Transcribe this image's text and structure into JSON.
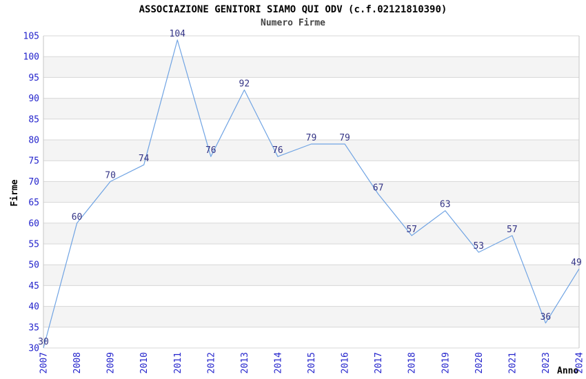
{
  "title": "ASSOCIAZIONE GENITORI SIAMO QUI ODV (c.f.02121810390)",
  "subtitle": "Numero Firme",
  "colors": {
    "tick_label": "#2323cc",
    "data_label": "#333385",
    "line": "#6fa3e3",
    "band_gray": "#f4f4f4",
    "gridline": "#d7d7d7",
    "plot_border": "#c6c6c6",
    "title": "#000000",
    "subtitle": "#444444",
    "axis_title": "#000000"
  },
  "chart_data": {
    "type": "line",
    "title": "ASSOCIAZIONE GENITORI SIAMO QUI ODV (c.f.02121810390)",
    "subtitle": "Numero Firme",
    "xlabel": "Anno",
    "ylabel": "Firme",
    "categories": [
      "2007",
      "2008",
      "2009",
      "2010",
      "2011",
      "2012",
      "2013",
      "2014",
      "2015",
      "2016",
      "2017",
      "2018",
      "2019",
      "2020",
      "2021",
      "2023",
      "2024"
    ],
    "values": [
      30,
      60,
      70,
      74,
      104,
      76,
      92,
      76,
      79,
      79,
      67,
      57,
      63,
      53,
      57,
      36,
      49
    ],
    "ylim": [
      30,
      105
    ],
    "y_ticks": [
      105,
      100,
      95,
      90,
      85,
      80,
      75,
      70,
      65,
      60,
      55,
      50,
      45,
      40,
      35,
      30
    ],
    "grid": "horizontal-only",
    "band_fill": "alternating",
    "legend_position": "none",
    "x_tick_rotation": -90,
    "data_labels_shown": true
  }
}
